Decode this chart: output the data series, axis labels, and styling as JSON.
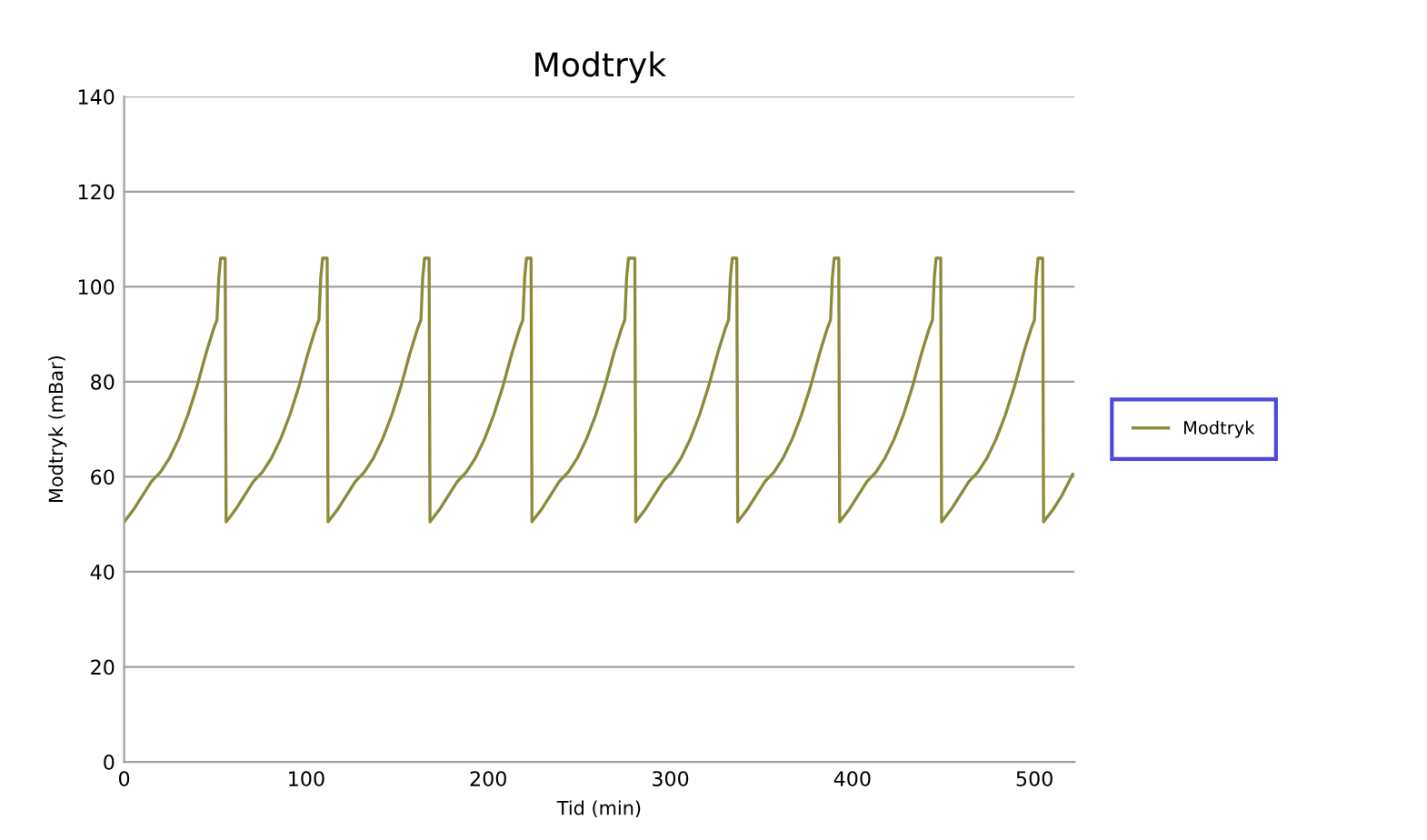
{
  "chart_data": {
    "type": "line",
    "title": "Modtryk",
    "xlabel": "Tid (min)",
    "ylabel": "Modtryk (mBar)",
    "xlim": [
      0,
      522
    ],
    "xticks": [
      0,
      100,
      200,
      300,
      400,
      500
    ],
    "ylim": [
      0,
      140
    ],
    "yticks": [
      0,
      20,
      40,
      60,
      80,
      100,
      120,
      140
    ],
    "grid": "y",
    "legend": "right",
    "marker": "none",
    "line_style": "solid",
    "series": [
      {
        "name": "Modtryk",
        "color": "#8b8b3a",
        "x": [
          0,
          5,
          10,
          15,
          20,
          25,
          30,
          35,
          40,
          45,
          49,
          51,
          52,
          53,
          55.5,
          56,
          61,
          66,
          71,
          76,
          81,
          86,
          91,
          96,
          101,
          105,
          107,
          108,
          109,
          111.5,
          112,
          117,
          122,
          127,
          132,
          137,
          142,
          147,
          152,
          157,
          161,
          163,
          164,
          165,
          167.5,
          168,
          173,
          178,
          183,
          188,
          193,
          198,
          203,
          208,
          213,
          217,
          219,
          220,
          221,
          223.5,
          224,
          229,
          234,
          239,
          244,
          249,
          254,
          259,
          264,
          269,
          273,
          275,
          276,
          277,
          280.5,
          281,
          286,
          291,
          296,
          301,
          306,
          311,
          316,
          321,
          326,
          330,
          332,
          333,
          334,
          336.5,
          337,
          342,
          347,
          352,
          357,
          362,
          367,
          372,
          377,
          382,
          386,
          388,
          389,
          390,
          392.5,
          393,
          398,
          403,
          408,
          413,
          418,
          423,
          428,
          433,
          438,
          442,
          444,
          445,
          446,
          448.5,
          449,
          454,
          459,
          464,
          469,
          474,
          479,
          484,
          489,
          494,
          498,
          500,
          501,
          502,
          504.5,
          505,
          510,
          515,
          521
        ],
        "values": [
          50.5,
          53,
          56,
          59,
          61,
          64,
          68,
          73,
          79,
          86,
          91,
          93,
          102,
          106,
          106,
          50.5,
          53,
          56,
          59,
          61,
          64,
          68,
          73,
          79,
          86,
          91,
          93,
          102,
          106,
          106,
          50.5,
          53,
          56,
          59,
          61,
          64,
          68,
          73,
          79,
          86,
          91,
          93,
          102,
          106,
          106,
          50.5,
          53,
          56,
          59,
          61,
          64,
          68,
          73,
          79,
          86,
          91,
          93,
          102,
          106,
          106,
          50.5,
          53,
          56,
          59,
          61,
          64,
          68,
          73,
          79,
          86,
          91,
          93,
          102,
          106,
          106,
          50.5,
          53,
          56,
          59,
          61,
          64,
          68,
          73,
          79,
          86,
          91,
          93,
          102,
          106,
          106,
          50.5,
          53,
          56,
          59,
          61,
          64,
          68,
          73,
          79,
          86,
          91,
          93,
          102,
          106,
          106,
          50.5,
          53,
          56,
          59,
          61,
          64,
          68,
          73,
          79,
          86,
          91,
          93,
          102,
          106,
          106,
          50.5,
          53,
          56,
          59,
          61,
          64,
          68,
          73,
          79,
          86,
          91,
          93,
          102,
          106,
          106,
          50.5,
          53,
          56,
          60.5
        ]
      }
    ]
  }
}
